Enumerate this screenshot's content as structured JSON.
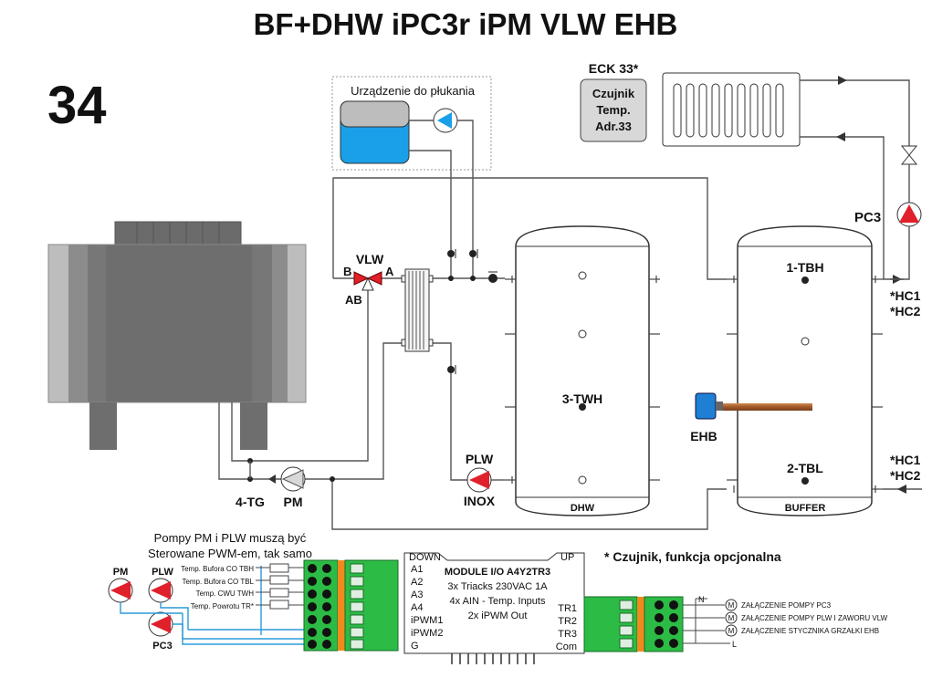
{
  "header": {
    "title": "BF+DHW iPC3r iPM VLW EHB",
    "number": "34"
  },
  "flush_device": {
    "label": "Urządzenie do płukania"
  },
  "eck": {
    "title": "ECK 33*",
    "sensor_lines": [
      "Czujnik",
      "Temp.",
      "Adr.33"
    ]
  },
  "labels": {
    "vlw": "VLW",
    "valve_b": "B",
    "valve_a": "A",
    "valve_ab": "AB",
    "pc3": "PC3",
    "tbh": "1-TBH",
    "tbl": "2-TBL",
    "twh": "3-TWH",
    "hc1_top": "*HC1",
    "hc2_top": "*HC2",
    "hc1_bottom": "*HC1",
    "hc2_bottom": "*HC2",
    "ehb": "EHB",
    "plw": "PLW",
    "inox": "INOX",
    "pm": "PM",
    "tg": "4-TG",
    "dhw_tank": "DHW",
    "buffer_tank": "BUFFER"
  },
  "note_pwm": [
    "Pompy PM i PLW muszą być",
    "Sterowane PWM-em, tak samo"
  ],
  "note_sensor": "* Czujnik, funkcja opcjonalna",
  "small_pumps": [
    "PM",
    "PLW",
    "PC3"
  ],
  "sensor_inputs": [
    "Temp. Bufora CO TBH",
    "Temp. Bufora CO TBL",
    "Temp. CWU TWH",
    "Temp. Powrotu TR*"
  ],
  "module": {
    "down": "DOWN",
    "up": "UP",
    "name": "MODULE I/O A4Y2TR3",
    "specs": [
      "3x Triacks 230VAC 1A",
      "4x AIN - Temp. Inputs",
      "2x iPWM Out"
    ],
    "left_pins": [
      "A1",
      "A2",
      "A3",
      "A4",
      "iPWM1",
      "iPWM2",
      "G"
    ],
    "right_pins": [
      "TR1",
      "TR2",
      "TR3",
      "Com"
    ]
  },
  "outputs": {
    "n": "N",
    "l": "L",
    "m": "M",
    "items": [
      "ZAŁĄCZENIE POMPY PC3",
      "ZAŁĄCZENIE POMPY PLW I ZAWORU VLW",
      "ZAŁĄCZENIE STYCZNIKA GRZAŁKI EHB"
    ]
  }
}
